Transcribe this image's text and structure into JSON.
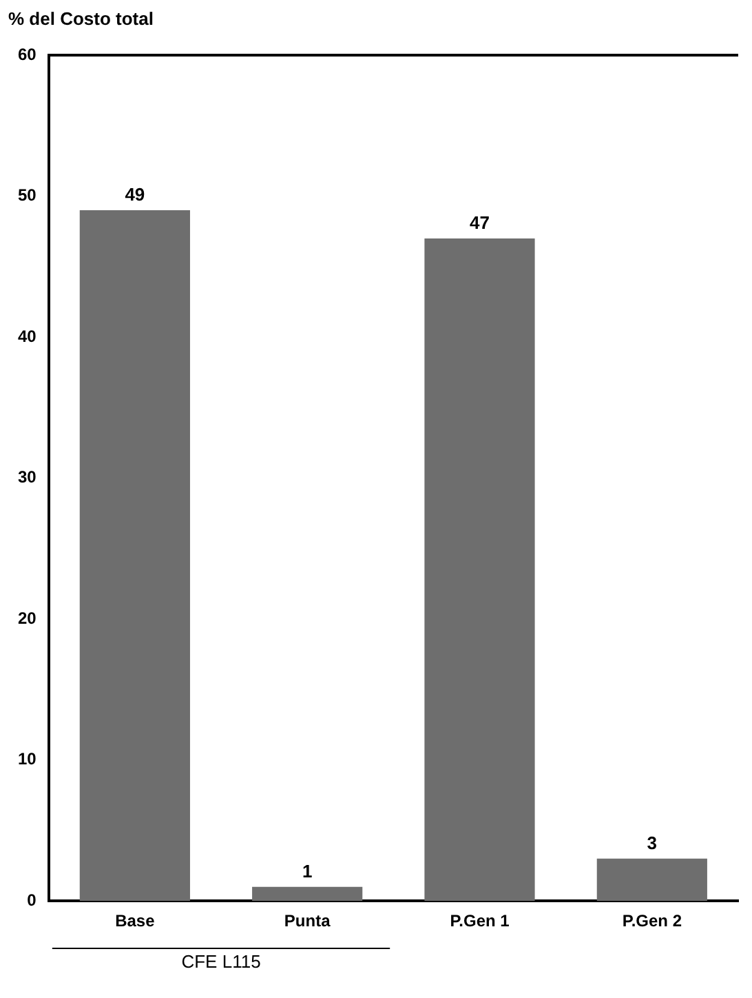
{
  "chart_data": {
    "type": "bar",
    "ylabel": "% del Costo total",
    "categories": [
      "Base",
      "Punta",
      "P.Gen 1",
      "P.Gen 2"
    ],
    "values": [
      49,
      1,
      47,
      3
    ],
    "color": "#6e6e6e",
    "ylim": [
      0,
      60
    ],
    "yticks": [
      0,
      10,
      20,
      30,
      40,
      50,
      60
    ],
    "grid": false,
    "legend": false,
    "data_labels": true,
    "annotations": [
      "CFE L115"
    ]
  }
}
